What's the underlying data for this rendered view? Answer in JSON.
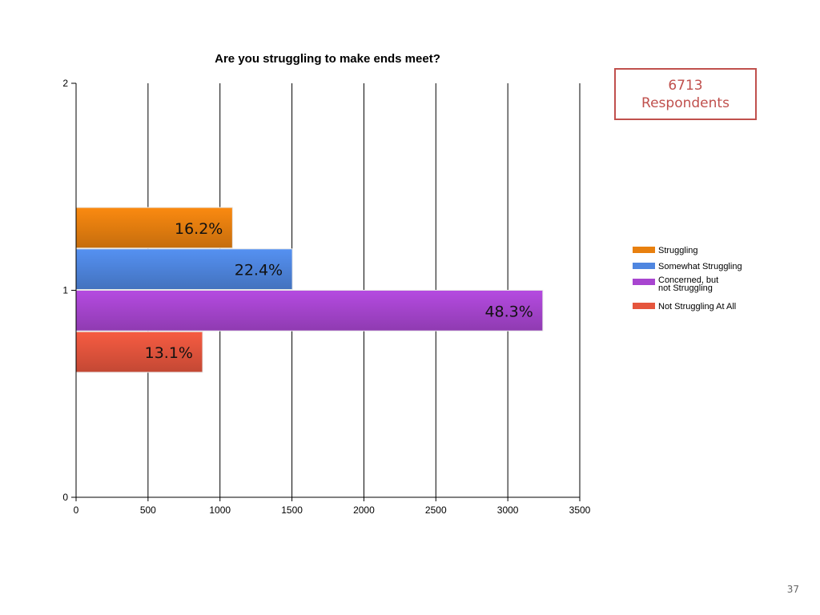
{
  "chart_data": {
    "type": "bar",
    "orientation": "horizontal",
    "title": "Are you struggling to make ends meet?",
    "xlim": [
      0,
      3500
    ],
    "x_ticks": [
      "0",
      "500",
      "1000",
      "1500",
      "2000",
      "2500",
      "3000",
      "3500"
    ],
    "ylim": [
      0,
      2
    ],
    "y_ticks": [
      "0",
      "1",
      "2"
    ],
    "grid": "vertical",
    "legend_position": "right",
    "series": [
      {
        "name": "Struggling",
        "value": 1087,
        "label": "16.2%",
        "color": "#e8800f"
      },
      {
        "name": "Somewhat Struggling",
        "value": 1503,
        "label": "22.4%",
        "color": "#4f86e0"
      },
      {
        "name": "Concerned, but not Struggling",
        "value": 3243,
        "label": "48.3%",
        "color": "#a845d0"
      },
      {
        "name": "Not Struggling At All",
        "value": 879,
        "label": "13.1%",
        "color": "#e5553d"
      }
    ]
  },
  "annotation": {
    "count": "6713",
    "label": "Respondents"
  },
  "page_number": "37"
}
